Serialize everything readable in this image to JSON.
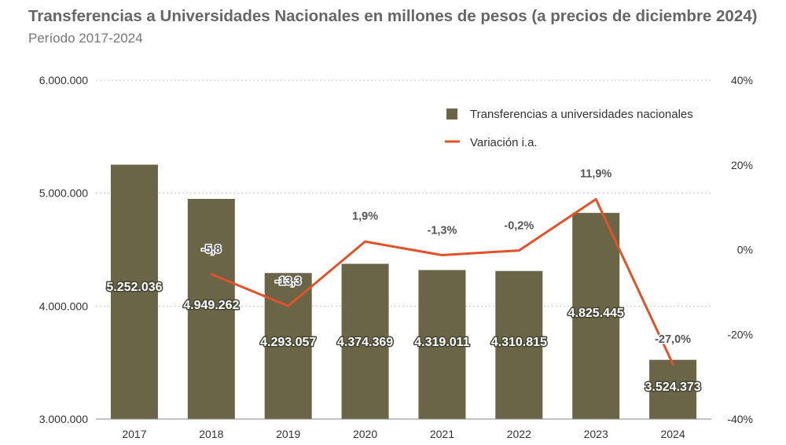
{
  "title": "Transferencias a Universidades Nacionales en millones de pesos (a precios de diciembre 2024)",
  "subtitle": "Período 2017-2024",
  "colors": {
    "bar": "#6b6547",
    "line": "#e0532a",
    "grid": "#cccccc",
    "axis": "#888888"
  },
  "chart_data": {
    "type": "bar",
    "categories": [
      "2017",
      "2018",
      "2019",
      "2020",
      "2021",
      "2022",
      "2023",
      "2024"
    ],
    "series": [
      {
        "name": "Transferencias a universidades nacionales",
        "type": "bar",
        "axis": "left",
        "values": [
          5252036,
          4949262,
          4293057,
          4374369,
          4319011,
          4310815,
          4825445,
          3524373
        ],
        "labels": [
          "5.252.036",
          "4.949.262",
          "4.293.057",
          "4.374.369",
          "4.319.011",
          "4.310.815",
          "4.825.445",
          "3.524.373"
        ]
      },
      {
        "name": "Variación i.a.",
        "type": "line",
        "axis": "right",
        "values": [
          null,
          -5.8,
          -13.3,
          1.9,
          -1.3,
          -0.2,
          11.9,
          -27.0
        ],
        "labels": [
          "",
          "-5,8",
          "-13,3",
          "1,9%",
          "-1,3%",
          "-0,2%",
          "11,9%",
          "-27,0%"
        ]
      }
    ],
    "y_left": {
      "min": 3000000,
      "max": 6000000,
      "ticks": [
        3000000,
        4000000,
        5000000,
        6000000
      ],
      "tick_labels": [
        "3.000.000",
        "4.000.000",
        "5.000.000",
        "6.000.000"
      ]
    },
    "y_right": {
      "min": -40,
      "max": 40,
      "ticks": [
        -40,
        -20,
        0,
        20,
        40
      ],
      "tick_labels": [
        "-40%",
        "-20%",
        "0%",
        "20%",
        "40%"
      ]
    },
    "grid": true,
    "legend": "top-right"
  }
}
